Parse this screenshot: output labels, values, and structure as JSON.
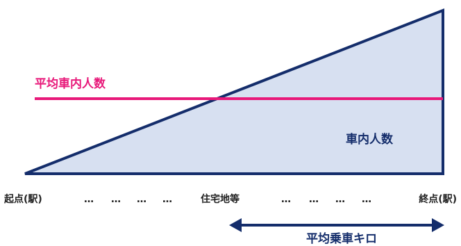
{
  "labels": {
    "average_passengers": "平均車内人数",
    "passengers_in_car": "車内人数",
    "start": "起点(駅)",
    "midpoint": "住宅地等",
    "end": "終点(駅)",
    "ellipsis": "…",
    "average_distance": "平均乗車キロ"
  },
  "colors": {
    "outline": "#142d6b",
    "fill": "#d7e0f1",
    "average_line": "#e8197a",
    "text": "#142d6b",
    "axis_text": "#222222"
  }
}
